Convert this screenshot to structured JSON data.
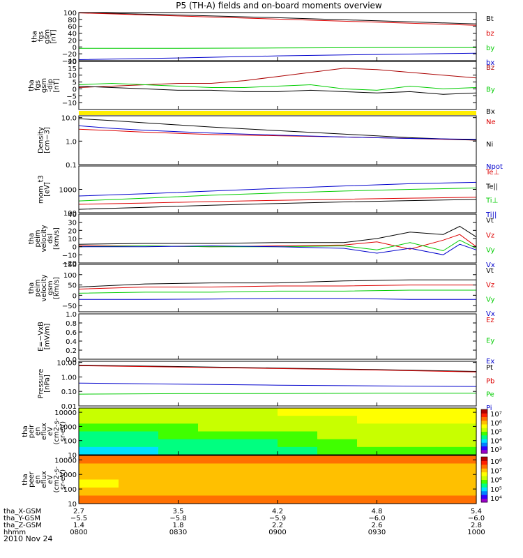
{
  "title": "P5 (TH-A) fields and on-board moments overview",
  "date_label": "2010 Nov 24",
  "colorbar_colors": [
    "#9a00c8",
    "#3000ff",
    "#0080ff",
    "#00e0ff",
    "#00ff80",
    "#40ff00",
    "#c8ff00",
    "#ffff00",
    "#ffc000",
    "#ff7000",
    "#ff2000",
    "#b00000"
  ],
  "chart_data": [
    {
      "id": "fgs_mag",
      "type": "line",
      "ylabel": [
        "tha",
        "fgs",
        "gsm",
        "[nT]"
      ],
      "ylim": [
        -40,
        100
      ],
      "yticks": [
        {
          "v": 100,
          "t": "100"
        },
        {
          "v": 80,
          "t": "80"
        },
        {
          "v": 60,
          "t": "60"
        },
        {
          "v": 40,
          "t": "40"
        },
        {
          "v": 20,
          "t": "20"
        },
        {
          "v": 0,
          "t": "0"
        },
        {
          "v": -20,
          "t": "−20"
        },
        {
          "v": -40,
          "t": "−40"
        }
      ],
      "series": [
        {
          "name": "Bt",
          "color": "#000000",
          "x": [
            0,
            30,
            60,
            90,
            120
          ],
          "y": [
            100,
            93,
            85,
            76,
            67
          ]
        },
        {
          "name": "bz",
          "color": "#dd0000",
          "x": [
            0,
            30,
            60,
            90,
            120
          ],
          "y": [
            99,
            90,
            81,
            72,
            63
          ]
        },
        {
          "name": "by",
          "color": "#00cc00",
          "x": [
            0,
            30,
            60,
            90,
            120
          ],
          "y": [
            -4,
            -4,
            -3,
            -2,
            -2
          ]
        },
        {
          "name": "bx",
          "color": "#0000cc",
          "x": [
            0,
            30,
            60,
            90,
            120
          ],
          "y": [
            -37,
            -32,
            -26,
            -22,
            -18
          ]
        }
      ]
    },
    {
      "id": "fgs_mag_detrend",
      "type": "line",
      "ylabel": [
        "tha",
        "fgs",
        "gsm",
        "-dip",
        "[nT]"
      ],
      "ylim": [
        -15,
        20
      ],
      "yticks": [
        {
          "v": 20,
          "t": "20"
        },
        {
          "v": 15,
          "t": "15"
        },
        {
          "v": 10,
          "t": "10"
        },
        {
          "v": 5,
          "t": "5"
        },
        {
          "v": 0,
          "t": "0"
        },
        {
          "v": -5,
          "t": "−5"
        },
        {
          "v": -10,
          "t": "−10"
        }
      ],
      "series": [
        {
          "name": "Bz",
          "color": "#aa0000",
          "x": [
            0,
            10,
            20,
            30,
            40,
            50,
            60,
            70,
            80,
            90,
            100,
            110,
            120
          ],
          "y": [
            1,
            2,
            3,
            4,
            4,
            6,
            9,
            12,
            15,
            14,
            12,
            10,
            8
          ]
        },
        {
          "name": "By",
          "color": "#00cc00",
          "x": [
            0,
            10,
            20,
            30,
            40,
            50,
            60,
            70,
            80,
            90,
            100,
            110,
            120
          ],
          "y": [
            3,
            4,
            3,
            2,
            1,
            1,
            2,
            3,
            0,
            -1,
            2,
            0,
            1
          ]
        },
        {
          "name": "Bx",
          "color": "#000000",
          "x": [
            0,
            10,
            20,
            30,
            40,
            50,
            60,
            70,
            80,
            90,
            100,
            110,
            120
          ],
          "y": [
            2,
            1,
            0,
            -1,
            -1,
            -2,
            -2,
            -1,
            -2,
            -3,
            -2,
            -4,
            -3
          ]
        }
      ]
    },
    {
      "id": "density",
      "type": "line",
      "log": true,
      "ylabel": [
        "Density",
        "[cm−3]"
      ],
      "ylim": [
        0.1,
        12
      ],
      "yticks": [
        {
          "v": 10,
          "t": "10.0"
        },
        {
          "v": 1,
          "t": "1.0"
        },
        {
          "v": 0.1,
          "t": "0.1"
        }
      ],
      "series": [
        {
          "name": "Ne",
          "color": "#dd0000",
          "x": [
            0,
            10,
            20,
            40,
            60,
            80,
            100,
            120
          ],
          "y": [
            3.2,
            2.8,
            2.4,
            1.9,
            1.7,
            1.5,
            1.3,
            1.1
          ]
        },
        {
          "name": "Ni",
          "color": "#000000",
          "x": [
            0,
            10,
            20,
            40,
            60,
            80,
            100,
            120
          ],
          "y": [
            9,
            7.5,
            6,
            4,
            2.8,
            2,
            1.4,
            1.1
          ]
        },
        {
          "name": "Npot",
          "color": "#0000cc",
          "x": [
            0,
            10,
            20,
            40,
            60,
            80,
            100,
            120
          ],
          "y": [
            4.5,
            3.5,
            2.9,
            2.2,
            1.8,
            1.5,
            1.3,
            1.2
          ]
        }
      ]
    },
    {
      "id": "temperature",
      "type": "line",
      "log": true,
      "ylabel": [
        "mom_t3",
        "[eV]"
      ],
      "ylim": [
        100,
        10000
      ],
      "yticks": [
        {
          "v": 1000,
          "t": "1000"
        },
        {
          "v": 100,
          "t": "100"
        }
      ],
      "series": [
        {
          "name": "Te⊥",
          "color": "#dd0000",
          "x": [
            0,
            20,
            40,
            60,
            80,
            100,
            120
          ],
          "y": [
            230,
            260,
            300,
            340,
            380,
            420,
            460
          ]
        },
        {
          "name": "Te||",
          "color": "#000000",
          "x": [
            0,
            20,
            40,
            60,
            80,
            100,
            120
          ],
          "y": [
            140,
            170,
            210,
            250,
            290,
            330,
            370
          ]
        },
        {
          "name": "Ti⊥",
          "color": "#00cc00",
          "x": [
            0,
            20,
            40,
            60,
            80,
            100,
            120
          ],
          "y": [
            320,
            420,
            560,
            700,
            850,
            1000,
            1150
          ]
        },
        {
          "name": "Ti||",
          "color": "#0000cc",
          "x": [
            0,
            20,
            40,
            60,
            80,
            100,
            120
          ],
          "y": [
            520,
            650,
            850,
            1100,
            1400,
            1750,
            2000
          ]
        }
      ]
    },
    {
      "id": "peim_dsl",
      "type": "line",
      "ylabel": [
        "tha",
        "peim",
        "velocity",
        "dsl",
        "[km/s]"
      ],
      "ylim": [
        -20,
        40
      ],
      "yticks": [
        {
          "v": 40,
          "t": "40"
        },
        {
          "v": 30,
          "t": "30"
        },
        {
          "v": 20,
          "t": "20"
        },
        {
          "v": 10,
          "t": "10"
        },
        {
          "v": 0,
          "t": "0"
        },
        {
          "v": -10,
          "t": "−10"
        },
        {
          "v": -20,
          "t": "−20"
        }
      ],
      "series": [
        {
          "name": "Vt",
          "color": "#000000",
          "x": [
            0,
            20,
            40,
            60,
            80,
            90,
            100,
            110,
            115,
            120
          ],
          "y": [
            3,
            4,
            4,
            5,
            5,
            10,
            18,
            15,
            25,
            12
          ]
        },
        {
          "name": "Vz",
          "color": "#dd0000",
          "x": [
            0,
            20,
            40,
            60,
            80,
            90,
            100,
            110,
            115,
            120
          ],
          "y": [
            1,
            1,
            0,
            1,
            2,
            6,
            -3,
            8,
            15,
            0
          ]
        },
        {
          "name": "Vy",
          "color": "#00cc00",
          "x": [
            0,
            20,
            40,
            60,
            80,
            90,
            100,
            110,
            115,
            120
          ],
          "y": [
            0,
            1,
            0,
            0,
            1,
            -4,
            5,
            -5,
            8,
            -2
          ]
        },
        {
          "name": "Vx",
          "color": "#0000cc",
          "x": [
            0,
            20,
            40,
            60,
            80,
            90,
            100,
            110,
            115,
            120
          ],
          "y": [
            0,
            0,
            1,
            0,
            -2,
            -8,
            -2,
            -10,
            3,
            -4
          ]
        }
      ]
    },
    {
      "id": "peim_gsm",
      "type": "line",
      "ylabel": [
        "tha",
        "peim",
        "velocity",
        "gsm",
        "[km/s]"
      ],
      "ylim": [
        -80,
        150
      ],
      "yticks": [
        {
          "v": 150,
          "t": "150"
        },
        {
          "v": 100,
          "t": "100"
        },
        {
          "v": 50,
          "t": "50"
        },
        {
          "v": 0,
          "t": "0"
        },
        {
          "v": -50,
          "t": "−50"
        }
      ],
      "series": [
        {
          "name": "Vt",
          "color": "#000000",
          "x": [
            0,
            20,
            40,
            60,
            80,
            100,
            120
          ],
          "y": [
            40,
            55,
            60,
            60,
            70,
            75,
            75
          ]
        },
        {
          "name": "Vz",
          "color": "#dd0000",
          "x": [
            0,
            20,
            40,
            60,
            80,
            100,
            120
          ],
          "y": [
            30,
            40,
            40,
            45,
            45,
            50,
            50
          ]
        },
        {
          "name": "Vy",
          "color": "#00cc00",
          "x": [
            0,
            20,
            40,
            60,
            80,
            100,
            120
          ],
          "y": [
            10,
            15,
            15,
            20,
            20,
            25,
            25
          ]
        },
        {
          "name": "Vx",
          "color": "#0000cc",
          "x": [
            0,
            20,
            40,
            60,
            80,
            100,
            120
          ],
          "y": [
            -20,
            -20,
            -18,
            -15,
            -15,
            -20,
            -20
          ]
        }
      ]
    },
    {
      "id": "efield",
      "type": "line",
      "ylabel": [
        "E=−VxB",
        "[mV/m]"
      ],
      "ylim": [
        0,
        1
      ],
      "yticks": [
        {
          "v": 1,
          "t": "1.0"
        },
        {
          "v": 0.8,
          "t": "0.8"
        },
        {
          "v": 0.6,
          "t": "0.6"
        },
        {
          "v": 0.4,
          "t": "0.4"
        },
        {
          "v": 0.2,
          "t": "0.2"
        },
        {
          "v": 0,
          "t": "0.0"
        }
      ],
      "series": [
        {
          "name": "Ez",
          "color": "#dd0000",
          "x": [],
          "y": []
        },
        {
          "name": "Ey",
          "color": "#00cc00",
          "x": [],
          "y": []
        },
        {
          "name": "Ex",
          "color": "#0000cc",
          "x": [],
          "y": []
        }
      ]
    },
    {
      "id": "pressure",
      "type": "line",
      "log": true,
      "ylabel": [
        "Pressure",
        "[nPa]"
      ],
      "ylim": [
        0.01,
        12
      ],
      "yticks": [
        {
          "v": 10,
          "t": "10.00"
        },
        {
          "v": 1,
          "t": "1.00"
        },
        {
          "v": 0.1,
          "t": "0.10"
        },
        {
          "v": 0.01,
          "t": "0.01"
        }
      ],
      "series": [
        {
          "name": "Pt",
          "color": "#000000",
          "x": [
            0,
            30,
            60,
            90,
            120
          ],
          "y": [
            6.5,
            5.2,
            4.1,
            3.2,
            2.4
          ]
        },
        {
          "name": "Pb",
          "color": "#dd0000",
          "x": [
            0,
            30,
            60,
            90,
            120
          ],
          "y": [
            6.0,
            4.8,
            3.8,
            3.0,
            2.2
          ]
        },
        {
          "name": "Pe",
          "color": "#00cc00",
          "x": [
            0,
            30,
            60,
            90,
            120
          ],
          "y": [
            0.065,
            0.07,
            0.072,
            0.075,
            0.075
          ]
        },
        {
          "name": "Pi",
          "color": "#0000cc",
          "x": [
            0,
            30,
            60,
            90,
            120
          ],
          "y": [
            0.38,
            0.32,
            0.27,
            0.24,
            0.22
          ]
        }
      ]
    },
    {
      "id": "peir_en_eflux",
      "type": "heatmap",
      "log": true,
      "ylabel": [
        "tha",
        "peir",
        "en",
        "eflux",
        "eV",
        "(cm2-s-",
        "sr-eV)"
      ],
      "ylim": [
        10,
        20000
      ],
      "yticks": [
        {
          "v": 10000,
          "t": "10000"
        },
        {
          "v": 1000,
          "t": "1000"
        },
        {
          "v": 100,
          "t": "100"
        },
        {
          "v": 10,
          "t": "10"
        }
      ],
      "cbar_labels": [
        "10⁷",
        "10⁶",
        "10⁵",
        "10⁴",
        "10³"
      ],
      "grid_rows": [
        [
          0.55,
          0.55,
          0.55,
          0.58,
          0.58,
          0.6,
          0.6,
          0.62,
          0.62,
          0.62
        ],
        [
          0.5,
          0.5,
          0.52,
          0.55,
          0.55,
          0.55,
          0.58,
          0.6,
          0.6,
          0.6
        ],
        [
          0.45,
          0.45,
          0.48,
          0.5,
          0.5,
          0.52,
          0.55,
          0.58,
          0.58,
          0.58
        ],
        [
          0.4,
          0.4,
          0.42,
          0.45,
          0.45,
          0.48,
          0.5,
          0.55,
          0.55,
          0.55
        ],
        [
          0.35,
          0.35,
          0.38,
          0.4,
          0.4,
          0.45,
          0.48,
          0.5,
          0.52,
          0.52
        ],
        [
          0.3,
          0.3,
          0.32,
          0.35,
          0.35,
          0.38,
          0.42,
          0.45,
          0.48,
          0.48
        ]
      ]
    },
    {
      "id": "peer_en_eflux",
      "type": "heatmap",
      "log": true,
      "ylabel": [
        "tha",
        "peer",
        "en",
        "eflux",
        "eV",
        "(cm2-s-",
        "sr-eV)"
      ],
      "ylim": [
        10,
        20000
      ],
      "yticks": [
        {
          "v": 10000,
          "t": "10000"
        },
        {
          "v": 1000,
          "t": "1000"
        },
        {
          "v": 100,
          "t": "100"
        },
        {
          "v": 10,
          "t": "10"
        }
      ],
      "cbar_labels": [
        "10⁸",
        "10⁷",
        "10⁶",
        "10⁵",
        "10⁴"
      ],
      "grid_rows": [
        [
          0.78,
          0.78,
          0.8,
          0.8,
          0.78,
          0.78,
          0.8,
          0.82,
          0.82,
          0.8
        ],
        [
          0.72,
          0.7,
          0.72,
          0.72,
          0.72,
          0.74,
          0.75,
          0.76,
          0.76,
          0.75
        ],
        [
          0.75,
          0.74,
          0.76,
          0.76,
          0.76,
          0.76,
          0.77,
          0.77,
          0.77,
          0.77
        ],
        [
          0.68,
          0.7,
          0.72,
          0.74,
          0.74,
          0.74,
          0.74,
          0.75,
          0.75,
          0.74
        ],
        [
          0.72,
          0.72,
          0.74,
          0.75,
          0.74,
          0.74,
          0.74,
          0.75,
          0.75,
          0.74
        ],
        [
          0.85,
          0.85,
          0.86,
          0.86,
          0.86,
          0.86,
          0.86,
          0.86,
          0.86,
          0.86
        ]
      ]
    }
  ],
  "x_axis": {
    "times": [
      "0800",
      "0830",
      "0900",
      "0930",
      "1000"
    ],
    "minutes": [
      0,
      30,
      60,
      90,
      120
    ],
    "rows": [
      {
        "label": "tha_X-GSM",
        "values": [
          "2.7",
          "3.5",
          "4.2",
          "4.8",
          "5.4"
        ]
      },
      {
        "label": "tha_Y-GSM",
        "values": [
          "−5.5",
          "−5.8",
          "−5.9",
          "−6.0",
          "−6.0"
        ]
      },
      {
        "label": "tha_Z-GSM",
        "values": [
          "1.4",
          "1.8",
          "2.2",
          "2.6",
          "2.8"
        ]
      },
      {
        "label": "hhmm",
        "values": [
          "0800",
          "0830",
          "0900",
          "0930",
          "1000"
        ]
      }
    ]
  }
}
